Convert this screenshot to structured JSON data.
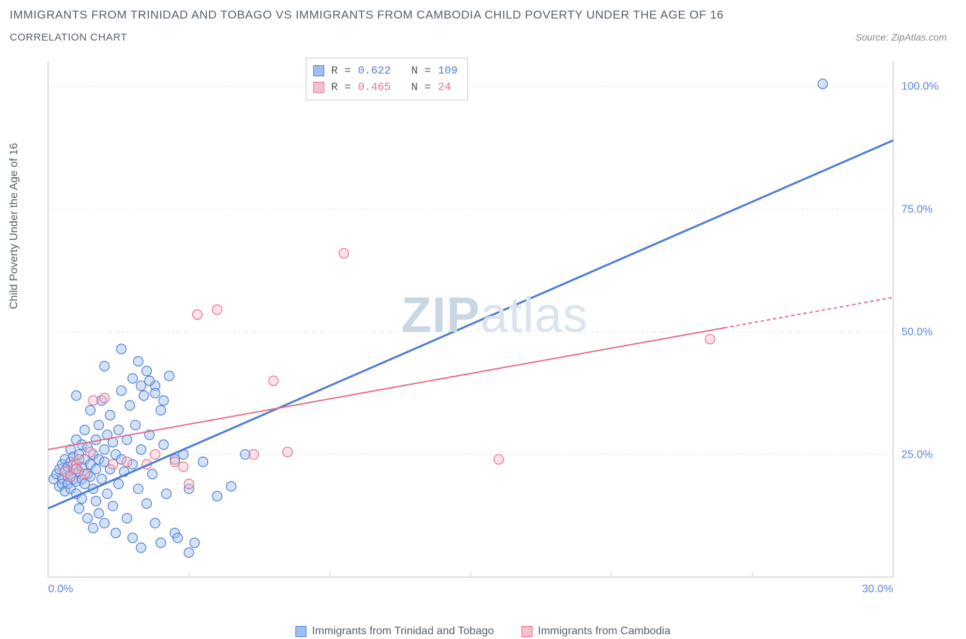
{
  "title": "IMMIGRANTS FROM TRINIDAD AND TOBAGO VS IMMIGRANTS FROM CAMBODIA CHILD POVERTY UNDER THE AGE OF 16",
  "subtitle": "CORRELATION CHART",
  "source_label": "Source: ZipAtlas.com",
  "y_axis_label": "Child Poverty Under the Age of 16",
  "watermark_bold": "ZIP",
  "watermark_rest": "atlas",
  "chart": {
    "type": "scatter",
    "background_color": "#ffffff",
    "grid_color": "#e4e4e4",
    "axis_color": "#dddddd",
    "tick_label_color": "#5b84d7",
    "text_color": "#555f6b",
    "xlim": [
      0,
      30
    ],
    "ylim": [
      0,
      105
    ],
    "x_ticks": [
      0,
      30
    ],
    "x_tick_labels": [
      "0.0%",
      "30.0%"
    ],
    "y_ticks": [
      25,
      50,
      75,
      100
    ],
    "y_tick_labels": [
      "25.0%",
      "50.0%",
      "75.0%",
      "100.0%"
    ],
    "x_minor_ticks": [
      5,
      10,
      15,
      20,
      25
    ],
    "marker_radius": 7,
    "marker_fill_opacity": 0.45,
    "marker_stroke_width": 1.2,
    "series": [
      {
        "name": "Immigrants from Trinidad and Tobago",
        "color_stroke": "#4f7fd1",
        "color_fill": "#9fbef0",
        "r_label": "R =",
        "r_value": "0.622",
        "n_label": "N =",
        "n_value": "109",
        "trend": {
          "x1": 0,
          "y1": 14,
          "x2": 30,
          "y2": 89,
          "width": 3,
          "dash_from_x": 30
        },
        "points": [
          [
            0.2,
            20.0
          ],
          [
            0.3,
            21.0
          ],
          [
            0.4,
            18.5
          ],
          [
            0.4,
            22.0
          ],
          [
            0.5,
            20.0
          ],
          [
            0.5,
            23.0
          ],
          [
            0.5,
            19.0
          ],
          [
            0.6,
            21.5
          ],
          [
            0.6,
            17.5
          ],
          [
            0.6,
            24.0
          ],
          [
            0.7,
            20.5
          ],
          [
            0.7,
            22.5
          ],
          [
            0.7,
            19.0
          ],
          [
            0.8,
            21.0
          ],
          [
            0.8,
            23.5
          ],
          [
            0.8,
            18.0
          ],
          [
            0.8,
            26.0
          ],
          [
            0.9,
            20.0
          ],
          [
            0.9,
            22.0
          ],
          [
            0.9,
            24.5
          ],
          [
            1.0,
            19.5
          ],
          [
            1.0,
            23.0
          ],
          [
            1.0,
            17.0
          ],
          [
            1.0,
            28.0
          ],
          [
            1.1,
            21.5
          ],
          [
            1.1,
            25.0
          ],
          [
            1.1,
            14.0
          ],
          [
            1.2,
            20.0
          ],
          [
            1.2,
            22.5
          ],
          [
            1.2,
            27.0
          ],
          [
            1.2,
            16.0
          ],
          [
            1.3,
            24.0
          ],
          [
            1.3,
            19.0
          ],
          [
            1.3,
            30.0
          ],
          [
            1.4,
            21.0
          ],
          [
            1.4,
            12.0
          ],
          [
            1.4,
            26.5
          ],
          [
            1.5,
            20.5
          ],
          [
            1.5,
            23.0
          ],
          [
            1.5,
            34.0
          ],
          [
            1.6,
            18.0
          ],
          [
            1.6,
            25.0
          ],
          [
            1.6,
            10.0
          ],
          [
            1.7,
            22.0
          ],
          [
            1.7,
            28.0
          ],
          [
            1.7,
            15.5
          ],
          [
            1.8,
            24.0
          ],
          [
            1.8,
            13.0
          ],
          [
            1.8,
            31.0
          ],
          [
            1.9,
            20.0
          ],
          [
            1.9,
            36.0
          ],
          [
            2.0,
            26.0
          ],
          [
            2.0,
            11.0
          ],
          [
            2.0,
            23.5
          ],
          [
            2.1,
            29.0
          ],
          [
            2.1,
            17.0
          ],
          [
            2.2,
            22.0
          ],
          [
            2.2,
            33.0
          ],
          [
            2.3,
            14.5
          ],
          [
            2.3,
            27.5
          ],
          [
            2.4,
            25.0
          ],
          [
            2.4,
            9.0
          ],
          [
            2.5,
            30.0
          ],
          [
            2.5,
            19.0
          ],
          [
            2.6,
            24.0
          ],
          [
            2.6,
            38.0
          ],
          [
            2.7,
            21.5
          ],
          [
            2.8,
            28.0
          ],
          [
            2.8,
            12.0
          ],
          [
            2.9,
            35.0
          ],
          [
            3.0,
            8.0
          ],
          [
            3.0,
            40.5
          ],
          [
            3.0,
            23.0
          ],
          [
            3.1,
            31.0
          ],
          [
            3.2,
            18.0
          ],
          [
            3.2,
            44.0
          ],
          [
            3.3,
            6.0
          ],
          [
            3.3,
            26.0
          ],
          [
            3.4,
            37.0
          ],
          [
            3.5,
            15.0
          ],
          [
            3.5,
            42.0
          ],
          [
            3.6,
            29.0
          ],
          [
            3.7,
            21.0
          ],
          [
            3.8,
            39.0
          ],
          [
            3.8,
            11.0
          ],
          [
            4.0,
            34.0
          ],
          [
            4.0,
            7.0
          ],
          [
            4.1,
            27.0
          ],
          [
            4.2,
            17.0
          ],
          [
            4.3,
            41.0
          ],
          [
            4.5,
            24.0
          ],
          [
            4.5,
            9.0
          ],
          [
            4.6,
            8.0
          ],
          [
            4.8,
            25.0
          ],
          [
            5.0,
            5.0
          ],
          [
            5.0,
            18.0
          ],
          [
            5.2,
            7.0
          ],
          [
            5.5,
            23.5
          ],
          [
            6.0,
            16.5
          ],
          [
            6.5,
            18.5
          ],
          [
            7.0,
            25.0
          ],
          [
            27.5,
            100.5
          ],
          [
            2.6,
            46.5
          ],
          [
            1.0,
            37.0
          ],
          [
            2.0,
            43.0
          ],
          [
            3.6,
            40.0
          ],
          [
            3.8,
            37.5
          ],
          [
            4.1,
            36.0
          ],
          [
            3.3,
            39.0
          ]
        ]
      },
      {
        "name": "Immigrants from Cambodia",
        "color_stroke": "#e56f8a",
        "color_fill": "#f6c1cd",
        "r_label": "R =",
        "r_value": "0.465",
        "n_label": "N =",
        "n_value": " 24",
        "trend": {
          "x1": 0,
          "y1": 26,
          "x2": 30,
          "y2": 57,
          "width": 2,
          "dash_from_x": 24
        },
        "points": [
          [
            0.6,
            21.5
          ],
          [
            0.8,
            20.5
          ],
          [
            0.9,
            23.0
          ],
          [
            1.0,
            22.0
          ],
          [
            1.1,
            24.0
          ],
          [
            1.3,
            21.0
          ],
          [
            1.5,
            25.5
          ],
          [
            1.6,
            36.0
          ],
          [
            2.0,
            36.5
          ],
          [
            2.3,
            23.0
          ],
          [
            2.8,
            23.5
          ],
          [
            3.5,
            23.0
          ],
          [
            3.8,
            25.0
          ],
          [
            4.5,
            23.5
          ],
          [
            4.8,
            22.5
          ],
          [
            5.0,
            19.0
          ],
          [
            5.3,
            53.5
          ],
          [
            6.0,
            54.5
          ],
          [
            7.3,
            25.0
          ],
          [
            8.0,
            40.0
          ],
          [
            8.5,
            25.5
          ],
          [
            10.5,
            66.0
          ],
          [
            16.0,
            24.0
          ],
          [
            23.5,
            48.5
          ]
        ]
      }
    ]
  },
  "legend": {
    "series1_label": "Immigrants from Trinidad and Tobago",
    "series2_label": "Immigrants from Cambodia"
  }
}
